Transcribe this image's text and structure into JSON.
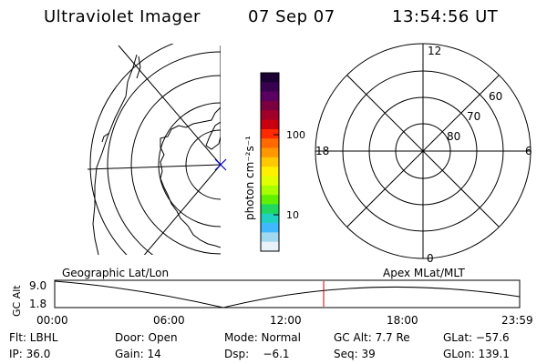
{
  "header": {
    "title": "Ultraviolet Imager",
    "date": "07 Sep 07",
    "time": "13:54:56 UT"
  },
  "colorbar": {
    "unit_label": "photon cm⁻²s⁻¹",
    "ticks": [
      "100",
      "10"
    ],
    "colors": [
      "#1a0033",
      "#3a0050",
      "#5a0060",
      "#7a0040",
      "#a0002a",
      "#c80010",
      "#ff2a00",
      "#ff6a00",
      "#ff9800",
      "#ffc800",
      "#fff000",
      "#e0ff00",
      "#a8ff00",
      "#60f000",
      "#20d860",
      "#20d0c0",
      "#40b8ff",
      "#a0d8f0",
      "#e8f2f8"
    ]
  },
  "polar_plot": {
    "mlt_labels": [
      "12",
      "18",
      "6",
      "0"
    ],
    "lat_labels": [
      "60",
      "70",
      "80"
    ]
  },
  "timeline": {
    "left_label": "Geographic Lat/Lon",
    "right_label": "Apex MLat/MLT",
    "y_axis_label": "GC Alt",
    "y_ticks": [
      "9.0",
      "1.8"
    ],
    "x_ticks": [
      "00:00",
      "06:00",
      "12:00",
      "18:00",
      "23:59"
    ],
    "marker_color": "#cc0000"
  },
  "footer": {
    "filter": "Flt: LBHL",
    "door": "Door: Open",
    "mode": "Mode: Normal",
    "gc_alt": "GC Alt: 7.7 Re",
    "glat": "GLat: −57.6",
    "ip": "IP: 36.0",
    "gain": "Gain: 14",
    "dsp": "Dsp:    −6.1",
    "seq": "Seq: 39",
    "glon": "GLon: 139.1"
  }
}
